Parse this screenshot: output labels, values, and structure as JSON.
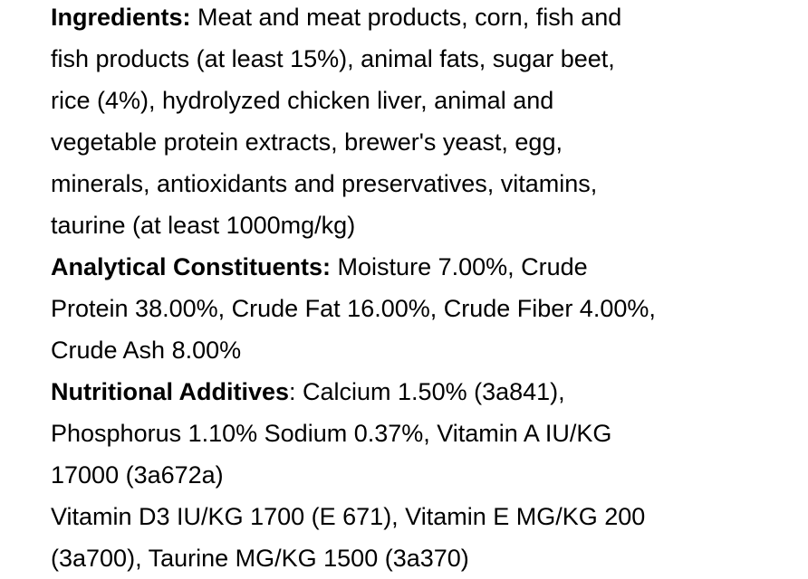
{
  "sections": {
    "ingredients": {
      "label": "Ingredients:",
      "lines": [
        " Meat and meat products, corn, fish and",
        "fish products (at least 15%), animal fats, sugar beet,",
        "rice (4%), hydrolyzed chicken liver, animal and",
        "vegetable protein extracts, brewer's yeast, egg,",
        "minerals, antioxidants and preservatives, vitamins,",
        "taurine (at least 1000mg/kg)"
      ]
    },
    "analytical": {
      "label": "Analytical Constituents:",
      "lines": [
        " Moisture 7.00%, Crude",
        "Protein 38.00%, Crude Fat 16.00%, Crude Fiber 4.00%,",
        "Crude Ash 8.00%"
      ]
    },
    "additives": {
      "label": "Nutritional Additives",
      "lines": [
        ": Calcium 1.50% (3a841),",
        "Phosphorus 1.10% Sodium 0.37%, Vitamin A IU/KG",
        "17000 (3a672a)",
        "Vitamin D3 IU/KG 1700 (E 671), Vitamin E MG/KG 200",
        "(3a700), Taurine MG/KG 1500 (3a370)"
      ]
    }
  }
}
